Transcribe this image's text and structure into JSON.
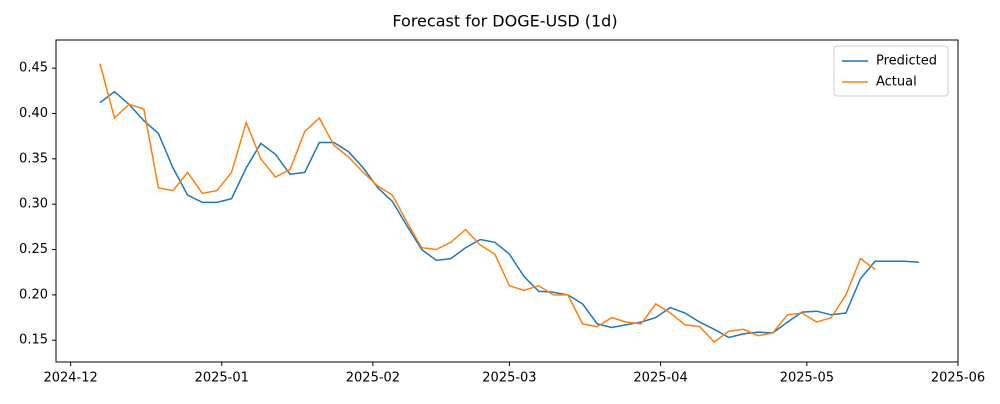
{
  "chart_data": {
    "type": "line",
    "title": "Forecast for DOGE-USD (1d)",
    "x": [
      6,
      9,
      12,
      15,
      18,
      21,
      24,
      27,
      30,
      33,
      36,
      39,
      42,
      45,
      48,
      51,
      54,
      57,
      60,
      63,
      66,
      69,
      72,
      75,
      78,
      81,
      84,
      87,
      90,
      93,
      96,
      99,
      102,
      105,
      108,
      111,
      114,
      117,
      120,
      123,
      126,
      129,
      132,
      135,
      138,
      141,
      144,
      147,
      150,
      153,
      156,
      159,
      162,
      165,
      168,
      171,
      174
    ],
    "series": [
      {
        "name": "Predicted",
        "color": "#1f77b4",
        "values": [
          0.412,
          0.424,
          0.41,
          0.392,
          0.378,
          0.34,
          0.31,
          0.302,
          0.302,
          0.306,
          0.34,
          0.367,
          0.355,
          0.333,
          0.335,
          0.368,
          0.368,
          0.358,
          0.34,
          0.318,
          0.303,
          0.276,
          0.25,
          0.238,
          0.24,
          0.252,
          0.261,
          0.258,
          0.245,
          0.22,
          0.204,
          0.203,
          0.2,
          0.19,
          0.168,
          0.164,
          0.167,
          0.17,
          0.175,
          0.186,
          0.18,
          0.17,
          0.162,
          0.153,
          0.157,
          0.159,
          0.158,
          0.17,
          0.181,
          0.182,
          0.178,
          0.18,
          0.218,
          0.237,
          0.237,
          0.237,
          0.236
        ]
      },
      {
        "name": "Actual",
        "color": "#ff7f0e",
        "values": [
          0.455,
          0.395,
          0.41,
          0.405,
          0.318,
          0.315,
          0.335,
          0.312,
          0.315,
          0.335,
          0.39,
          0.35,
          0.33,
          0.338,
          0.38,
          0.395,
          0.365,
          0.352,
          0.335,
          0.32,
          0.31,
          0.28,
          0.252,
          0.25,
          0.258,
          0.272,
          0.255,
          0.245,
          0.21,
          0.205,
          0.21,
          0.2,
          0.2,
          0.168,
          0.165,
          0.175,
          0.17,
          0.168,
          0.19,
          0.18,
          0.167,
          0.165,
          0.148,
          0.16,
          0.162,
          0.155,
          0.158,
          0.178,
          0.18,
          0.17,
          0.175,
          0.2,
          0.24,
          0.228,
          null,
          null,
          null
        ]
      }
    ],
    "xlim": [
      -3,
      182
    ],
    "xticks": [
      {
        "value": 0,
        "label": "2024-12"
      },
      {
        "value": 31,
        "label": "2025-01"
      },
      {
        "value": 62,
        "label": "2025-02"
      },
      {
        "value": 90,
        "label": "2025-03"
      },
      {
        "value": 121,
        "label": "2025-04"
      },
      {
        "value": 151,
        "label": "2025-05"
      },
      {
        "value": 182,
        "label": "2025-06"
      }
    ],
    "ylim": [
      0.126,
      0.481
    ],
    "yticks": [
      {
        "value": 0.15,
        "label": "0.15"
      },
      {
        "value": 0.2,
        "label": "0.20"
      },
      {
        "value": 0.25,
        "label": "0.25"
      },
      {
        "value": 0.3,
        "label": "0.30"
      },
      {
        "value": 0.35,
        "label": "0.35"
      },
      {
        "value": 0.4,
        "label": "0.40"
      },
      {
        "value": 0.45,
        "label": "0.45"
      }
    ],
    "legend": "upper right",
    "grid": false
  }
}
